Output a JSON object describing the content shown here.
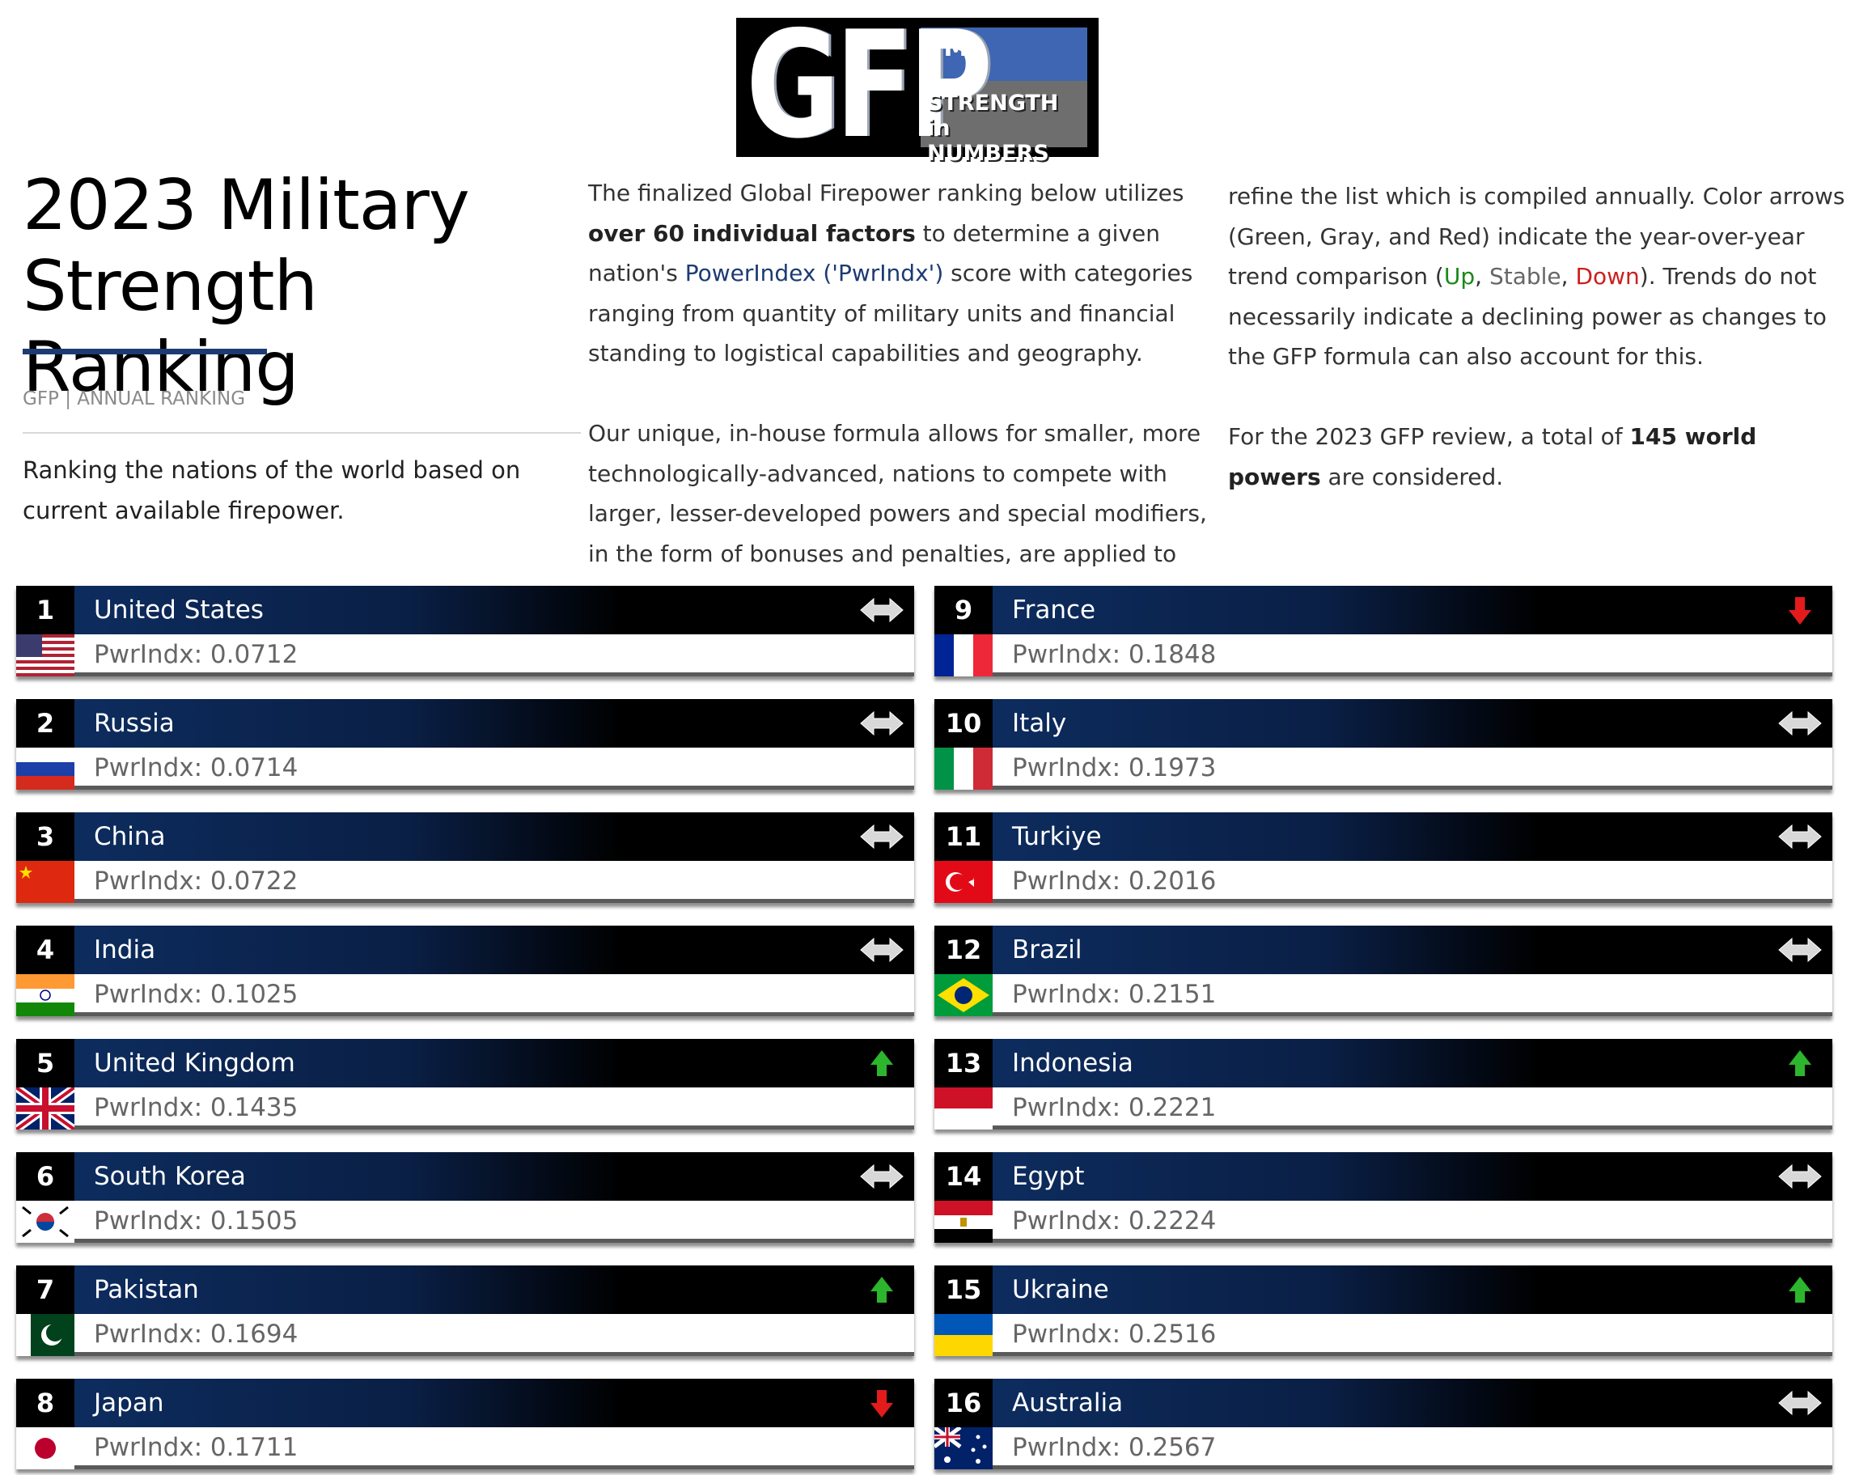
{
  "header": {
    "logo_letters": "GFP",
    "logo_tm": "TM",
    "logo_slogan_line1": "STRENGTH in",
    "logo_slogan_line2": "NUMBERS",
    "title": "2023 Military Strength Ranking",
    "section_label": "GFP | ANNUAL RANKING",
    "tagline": "Ranking the nations of the world based on current available firepower."
  },
  "intro": {
    "p1_a": "The finalized Global Firepower ranking below utilizes ",
    "p1_b_bold": "over 60 individual factors",
    "p1_c": " to determine a given nation's ",
    "p1_d_link": "PowerIndex ('PwrIndx')",
    "p1_e": " score with categories ranging from quantity of military units and financial standing to logistical capabilities and geography.",
    "p2_a": "Our unique, in-house formula allows for smaller, more technologically-advanced, nations to compete with larger, lesser-developed powers and special modifiers, in the form of bonuses and penalties, are applied to further ",
    "p2_b": "refine the list which is compiled annually. Color arrows (Green, Gray, and Red) indicate the year-over-year trend comparison (",
    "trend_up": "Up",
    "comma": ", ",
    "trend_stable": "Stable",
    "trend_down": "Down",
    "p2_c": "). Trends do not necessarily indicate a declining power as changes to the GFP formula can also account for this.",
    "p3_a": "For the 2023 GFP review, a total of ",
    "p3_b_bold": "145 world powers",
    "p3_c": " are considered."
  },
  "colors": {
    "accent": "#1d3b73",
    "trend_up": "#1a8a1a",
    "trend_stable": "#d8d8d8",
    "trend_down": "#cc1f1f"
  },
  "ranking": [
    {
      "rank": "1",
      "country": "United States",
      "score": "PwrIndx: 0.0712",
      "trend": "stable",
      "flag": "us-flag"
    },
    {
      "rank": "2",
      "country": "Russia",
      "score": "PwrIndx: 0.0714",
      "trend": "stable",
      "flag": "russia-flag"
    },
    {
      "rank": "3",
      "country": "China",
      "score": "PwrIndx: 0.0722",
      "trend": "stable",
      "flag": "china-flag"
    },
    {
      "rank": "4",
      "country": "India",
      "score": "PwrIndx: 0.1025",
      "trend": "stable",
      "flag": "india-flag"
    },
    {
      "rank": "5",
      "country": "United Kingdom",
      "score": "PwrIndx: 0.1435",
      "trend": "up",
      "flag": "uk-flag"
    },
    {
      "rank": "6",
      "country": "South Korea",
      "score": "PwrIndx: 0.1505",
      "trend": "stable",
      "flag": "south-korea-flag"
    },
    {
      "rank": "7",
      "country": "Pakistan",
      "score": "PwrIndx: 0.1694",
      "trend": "up",
      "flag": "pakistan-flag"
    },
    {
      "rank": "8",
      "country": "Japan",
      "score": "PwrIndx: 0.1711",
      "trend": "down",
      "flag": "japan-flag"
    },
    {
      "rank": "9",
      "country": "France",
      "score": "PwrIndx: 0.1848",
      "trend": "down",
      "flag": "france-flag"
    },
    {
      "rank": "10",
      "country": "Italy",
      "score": "PwrIndx: 0.1973",
      "trend": "stable",
      "flag": "italy-flag"
    },
    {
      "rank": "11",
      "country": "Turkiye",
      "score": "PwrIndx: 0.2016",
      "trend": "stable",
      "flag": "turkiye-flag"
    },
    {
      "rank": "12",
      "country": "Brazil",
      "score": "PwrIndx: 0.2151",
      "trend": "stable",
      "flag": "brazil-flag"
    },
    {
      "rank": "13",
      "country": "Indonesia",
      "score": "PwrIndx: 0.2221",
      "trend": "up",
      "flag": "indonesia-flag"
    },
    {
      "rank": "14",
      "country": "Egypt",
      "score": "PwrIndx: 0.2224",
      "trend": "stable",
      "flag": "egypt-flag"
    },
    {
      "rank": "15",
      "country": "Ukraine",
      "score": "PwrIndx: 0.2516",
      "trend": "up",
      "flag": "ukraine-flag"
    },
    {
      "rank": "16",
      "country": "Australia",
      "score": "PwrIndx: 0.2567",
      "trend": "stable",
      "flag": "australia-flag"
    }
  ]
}
